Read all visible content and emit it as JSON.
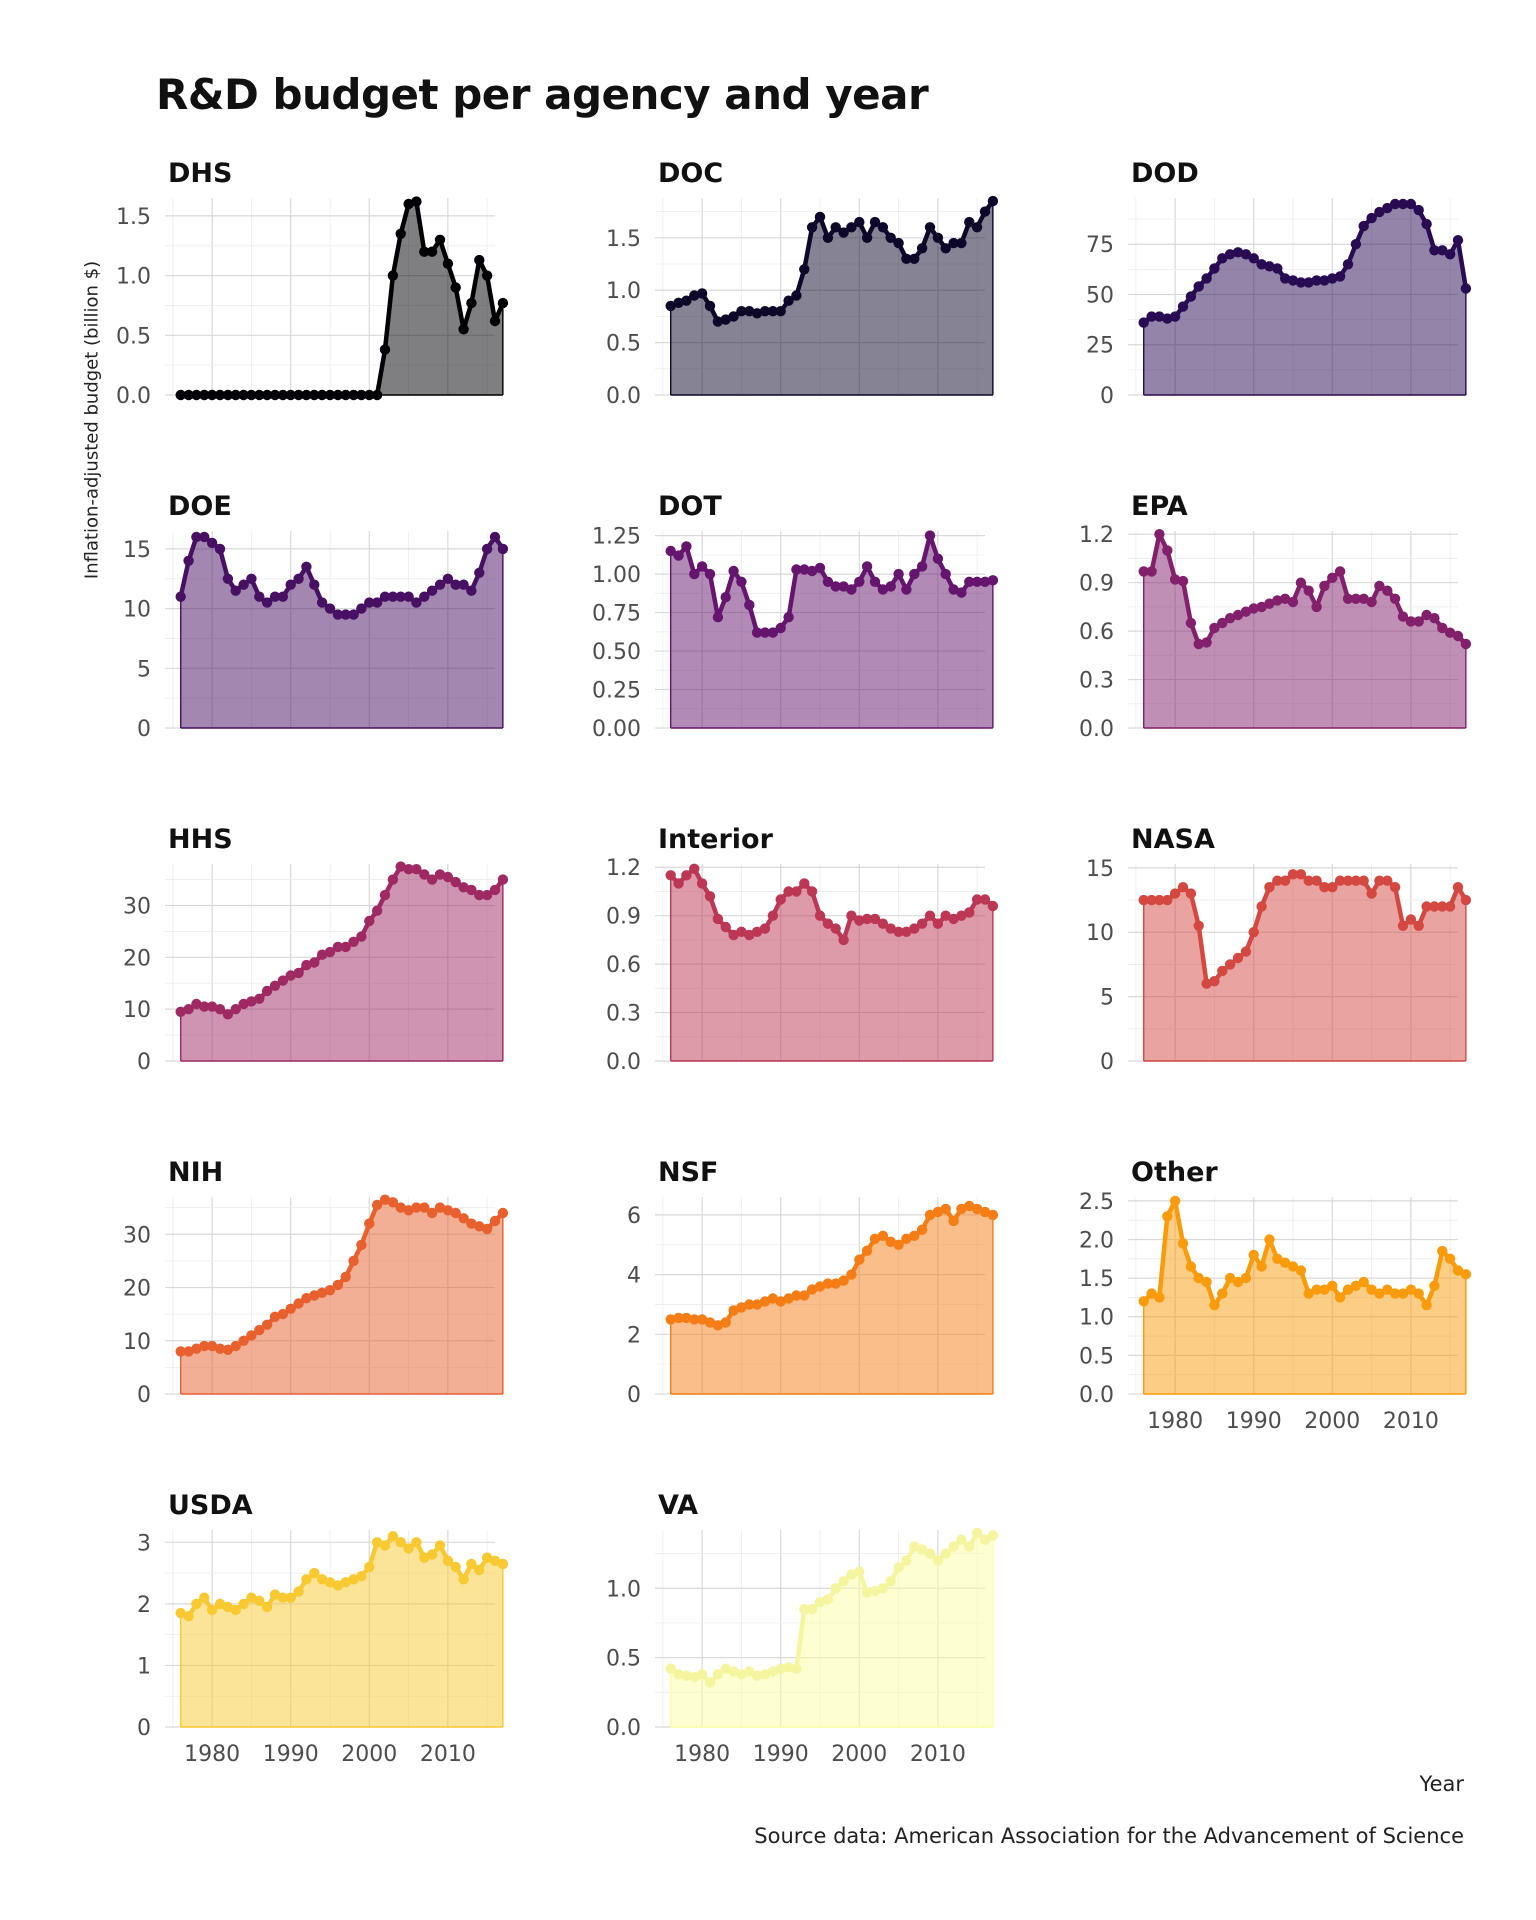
{
  "chart_data": {
    "type": "area",
    "title": "R&D budget per agency and year",
    "xlabel": "Year",
    "ylabel": "Inflation-adjusted budget (billion $)",
    "caption": "Source data: American Association for the Advancement of Science",
    "xlim": [
      1974,
      2016
    ],
    "x_ticks": [
      1980,
      1990,
      2000,
      2010
    ],
    "years": [
      1976,
      1977,
      1978,
      1979,
      1980,
      1981,
      1982,
      1983,
      1984,
      1985,
      1986,
      1987,
      1988,
      1989,
      1990,
      1991,
      1992,
      1993,
      1994,
      1995,
      1996,
      1997,
      1998,
      1999,
      2000,
      2001,
      2002,
      2003,
      2004,
      2005,
      2006,
      2007,
      2008,
      2009,
      2010,
      2011,
      2012,
      2013,
      2014,
      2015,
      2016,
      2017
    ],
    "grid": true,
    "legend": "none",
    "panels": [
      {
        "name": "DHS",
        "color": "#000004",
        "ylim": [
          0,
          1.65
        ],
        "yticks": [
          "0.0",
          "0.5",
          "1.0",
          "1.5"
        ],
        "ytick_values": [
          0,
          0.5,
          1.0,
          1.5
        ],
        "values": [
          0,
          0,
          0,
          0,
          0,
          0,
          0,
          0,
          0,
          0,
          0,
          0,
          0,
          0,
          0,
          0,
          0,
          0,
          0,
          0,
          0,
          0,
          0,
          0,
          0,
          0,
          0.38,
          1.0,
          1.35,
          1.6,
          1.62,
          1.2,
          1.2,
          1.3,
          1.1,
          0.9,
          0.55,
          0.77,
          1.13,
          1.0,
          0.62,
          0.77
        ]
      },
      {
        "name": "DOC",
        "color": "#0d0829",
        "ylim": [
          0,
          1.88
        ],
        "yticks": [
          "0.0",
          "0.5",
          "1.0",
          "1.5"
        ],
        "ytick_values": [
          0,
          0.5,
          1.0,
          1.5
        ],
        "values": [
          0.85,
          0.88,
          0.9,
          0.95,
          0.97,
          0.85,
          0.7,
          0.72,
          0.75,
          0.8,
          0.8,
          0.78,
          0.8,
          0.8,
          0.8,
          0.9,
          0.95,
          1.2,
          1.6,
          1.7,
          1.5,
          1.6,
          1.55,
          1.6,
          1.65,
          1.5,
          1.65,
          1.6,
          1.5,
          1.45,
          1.3,
          1.3,
          1.4,
          1.6,
          1.5,
          1.4,
          1.45,
          1.45,
          1.65,
          1.6,
          1.75,
          1.85
        ]
      },
      {
        "name": "DOD",
        "color": "#280b53",
        "ylim": [
          0,
          98
        ],
        "yticks": [
          "0",
          "25",
          "50",
          "75"
        ],
        "ytick_values": [
          0,
          25,
          50,
          75
        ],
        "values": [
          36,
          39,
          39,
          38,
          39,
          44,
          49,
          54,
          58,
          63,
          68,
          70,
          71,
          70,
          68,
          65,
          64,
          63,
          58,
          57,
          56,
          56,
          57,
          57,
          58,
          59,
          65,
          75,
          84,
          88,
          91,
          93,
          95,
          95,
          95,
          92,
          85,
          72,
          72,
          70,
          77,
          53
        ]
      },
      {
        "name": "DOE",
        "color": "#471063",
        "ylim": [
          0,
          16.5
        ],
        "yticks": [
          "0",
          "5",
          "10",
          "15"
        ],
        "ytick_values": [
          0,
          5,
          10,
          15
        ],
        "values": [
          11,
          14,
          16,
          16,
          15.5,
          15,
          12.5,
          11.5,
          12,
          12.5,
          11,
          10.5,
          11,
          11,
          12,
          12.5,
          13.5,
          12,
          10.5,
          10,
          9.5,
          9.5,
          9.5,
          10,
          10.5,
          10.5,
          11,
          11,
          11,
          11,
          10.5,
          11,
          11.5,
          12,
          12.5,
          12,
          12,
          11.5,
          13,
          15,
          16,
          15
        ]
      },
      {
        "name": "DOT",
        "color": "#65156e",
        "ylim": [
          0,
          1.28
        ],
        "yticks": [
          "0.00",
          "0.25",
          "0.50",
          "0.75",
          "1.00",
          "1.25"
        ],
        "ytick_values": [
          0,
          0.25,
          0.5,
          0.75,
          1.0,
          1.25
        ],
        "values": [
          1.15,
          1.12,
          1.18,
          1.0,
          1.05,
          1.0,
          0.72,
          0.85,
          1.02,
          0.95,
          0.8,
          0.62,
          0.62,
          0.62,
          0.65,
          0.72,
          1.03,
          1.03,
          1.02,
          1.04,
          0.95,
          0.92,
          0.92,
          0.9,
          0.95,
          1.05,
          0.95,
          0.9,
          0.92,
          1.0,
          0.9,
          1.0,
          1.05,
          1.25,
          1.1,
          1.0,
          0.9,
          0.88,
          0.95,
          0.95,
          0.95,
          0.96
        ]
      },
      {
        "name": "EPA",
        "color": "#82206c",
        "ylim": [
          0,
          1.22
        ],
        "yticks": [
          "0.0",
          "0.3",
          "0.6",
          "0.9",
          "1.2"
        ],
        "ytick_values": [
          0,
          0.3,
          0.6,
          0.9,
          1.2
        ],
        "values": [
          0.97,
          0.97,
          1.2,
          1.1,
          0.92,
          0.91,
          0.65,
          0.52,
          0.53,
          0.62,
          0.65,
          0.68,
          0.7,
          0.72,
          0.74,
          0.75,
          0.77,
          0.79,
          0.8,
          0.78,
          0.9,
          0.85,
          0.75,
          0.88,
          0.93,
          0.97,
          0.8,
          0.8,
          0.8,
          0.78,
          0.88,
          0.85,
          0.8,
          0.69,
          0.66,
          0.66,
          0.7,
          0.68,
          0.62,
          0.59,
          0.57,
          0.52
        ]
      },
      {
        "name": "HHS",
        "color": "#9f2a63",
        "ylim": [
          0,
          38
        ],
        "yticks": [
          "0",
          "10",
          "20",
          "30"
        ],
        "ytick_values": [
          0,
          10,
          20,
          30
        ],
        "values": [
          9.5,
          10,
          11,
          10.5,
          10.5,
          10,
          9,
          10,
          11,
          11.5,
          12,
          13.5,
          14.5,
          15.5,
          16.5,
          17,
          18.5,
          19,
          20.5,
          21,
          22,
          22,
          23,
          24,
          27,
          29,
          32,
          35,
          37.5,
          37,
          37,
          36,
          35,
          36,
          35.5,
          34.5,
          33.5,
          33,
          32,
          32,
          33,
          35
        ]
      },
      {
        "name": "Interior",
        "color": "#bc3754",
        "ylim": [
          0,
          1.22
        ],
        "yticks": [
          "0.0",
          "0.3",
          "0.6",
          "0.9",
          "1.2"
        ],
        "ytick_values": [
          0,
          0.3,
          0.6,
          0.9,
          1.2
        ],
        "values": [
          1.15,
          1.1,
          1.15,
          1.19,
          1.1,
          1.02,
          0.88,
          0.83,
          0.78,
          0.8,
          0.78,
          0.8,
          0.82,
          0.9,
          1.0,
          1.05,
          1.05,
          1.1,
          1.05,
          0.9,
          0.85,
          0.82,
          0.75,
          0.9,
          0.87,
          0.88,
          0.88,
          0.85,
          0.82,
          0.8,
          0.8,
          0.82,
          0.85,
          0.9,
          0.85,
          0.9,
          0.88,
          0.9,
          0.92,
          1.0,
          1.0,
          0.96
        ]
      },
      {
        "name": "NASA",
        "color": "#d44842",
        "ylim": [
          0,
          15.3
        ],
        "yticks": [
          "0",
          "5",
          "10",
          "15"
        ],
        "ytick_values": [
          0,
          5,
          10,
          15
        ],
        "values": [
          12.5,
          12.5,
          12.5,
          12.5,
          13,
          13.5,
          13,
          10.5,
          6,
          6.2,
          7,
          7.5,
          8,
          8.5,
          10,
          12,
          13.5,
          14,
          14,
          14.5,
          14.5,
          14,
          14,
          13.5,
          13.5,
          14,
          14,
          14,
          14,
          13,
          14,
          14,
          13.5,
          10.5,
          11,
          10.5,
          12,
          12,
          12,
          12,
          13.5,
          12.5
        ]
      },
      {
        "name": "NIH",
        "color": "#e8602d",
        "ylim": [
          0,
          37
        ],
        "yticks": [
          "0",
          "10",
          "20",
          "30"
        ],
        "ytick_values": [
          0,
          10,
          20,
          30
        ],
        "values": [
          8,
          8,
          8.5,
          9,
          9,
          8.5,
          8.3,
          9,
          10,
          11,
          12,
          13,
          14.5,
          15,
          16,
          17,
          18,
          18.5,
          19,
          19.5,
          20.5,
          22,
          25,
          28,
          32,
          35.5,
          36.5,
          36,
          35,
          34.5,
          35,
          35,
          34,
          35,
          34.5,
          34,
          33,
          32,
          31.5,
          31,
          32.5,
          34
        ]
      },
      {
        "name": "NSF",
        "color": "#f57d15",
        "ylim": [
          0,
          6.6
        ],
        "yticks": [
          "0",
          "2",
          "4",
          "6"
        ],
        "ytick_values": [
          0,
          2,
          4,
          6
        ],
        "values": [
          2.5,
          2.55,
          2.55,
          2.5,
          2.5,
          2.4,
          2.3,
          2.4,
          2.8,
          2.9,
          3.0,
          3.0,
          3.1,
          3.2,
          3.1,
          3.2,
          3.3,
          3.3,
          3.5,
          3.6,
          3.7,
          3.7,
          3.8,
          4.0,
          4.5,
          4.8,
          5.2,
          5.3,
          5.1,
          5.0,
          5.2,
          5.3,
          5.5,
          6.0,
          6.1,
          6.2,
          5.8,
          6.2,
          6.3,
          6.2,
          6.1,
          6.0
        ]
      },
      {
        "name": "Other",
        "color": "#fa9b0b",
        "ylim": [
          0,
          2.55
        ],
        "yticks": [
          "0.0",
          "0.5",
          "1.0",
          "1.5",
          "2.0",
          "2.5"
        ],
        "ytick_values": [
          0,
          0.5,
          1.0,
          1.5,
          2.0,
          2.5
        ],
        "values": [
          1.2,
          1.3,
          1.25,
          2.3,
          2.5,
          1.95,
          1.65,
          1.5,
          1.45,
          1.15,
          1.3,
          1.5,
          1.45,
          1.5,
          1.8,
          1.65,
          2.0,
          1.75,
          1.7,
          1.65,
          1.6,
          1.3,
          1.35,
          1.35,
          1.4,
          1.25,
          1.35,
          1.4,
          1.45,
          1.35,
          1.3,
          1.35,
          1.3,
          1.3,
          1.35,
          1.3,
          1.15,
          1.4,
          1.85,
          1.75,
          1.6,
          1.55
        ]
      },
      {
        "name": "USDA",
        "color": "#f8c931",
        "ylim": [
          0,
          3.2
        ],
        "yticks": [
          "0",
          "1",
          "2",
          "3"
        ],
        "ytick_values": [
          0,
          1,
          2,
          3
        ],
        "values": [
          1.85,
          1.8,
          2.0,
          2.1,
          1.9,
          2.0,
          1.95,
          1.9,
          2.0,
          2.1,
          2.05,
          1.95,
          2.15,
          2.1,
          2.1,
          2.2,
          2.4,
          2.5,
          2.4,
          2.35,
          2.3,
          2.35,
          2.4,
          2.45,
          2.6,
          3.0,
          2.95,
          3.1,
          3.0,
          2.9,
          3.0,
          2.75,
          2.8,
          2.95,
          2.7,
          2.6,
          2.4,
          2.65,
          2.55,
          2.75,
          2.7,
          2.65
        ]
      },
      {
        "name": "VA",
        "color": "#fcffa4",
        "ylim": [
          0,
          1.42
        ],
        "yticks": [
          "0.0",
          "0.5",
          "1.0"
        ],
        "ytick_values": [
          0,
          0.5,
          1.0
        ],
        "values": [
          0.42,
          0.38,
          0.37,
          0.36,
          0.38,
          0.32,
          0.38,
          0.42,
          0.4,
          0.38,
          0.4,
          0.37,
          0.38,
          0.4,
          0.42,
          0.43,
          0.42,
          0.85,
          0.85,
          0.9,
          0.92,
          1.0,
          1.05,
          1.1,
          1.12,
          0.97,
          0.98,
          1.0,
          1.05,
          1.15,
          1.2,
          1.3,
          1.28,
          1.25,
          1.2,
          1.25,
          1.3,
          1.35,
          1.3,
          1.4,
          1.35,
          1.38
        ]
      }
    ]
  }
}
